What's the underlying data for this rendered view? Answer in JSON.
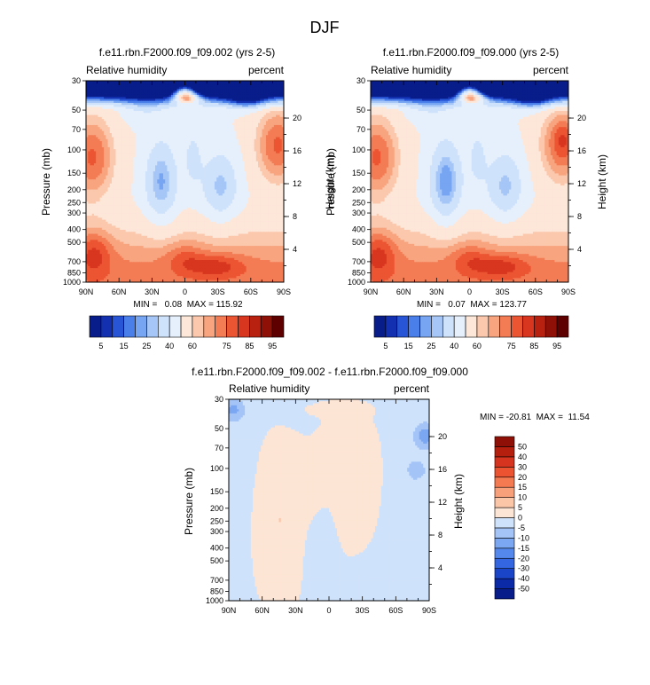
{
  "figure": {
    "title": "DJF"
  },
  "chart_data": [
    {
      "type": "heatmap",
      "title": "f.e11.rbn.F2000.f09_f09.002 (yrs 2-5)",
      "left_label": "Relative humidity",
      "right_label": "percent",
      "xlabel": "",
      "ylabel": "Pressure (mb)",
      "ylabel_right": "Height (km)",
      "x_ticks": [
        "90N",
        "60N",
        "30N",
        "0",
        "30S",
        "60S",
        "90S"
      ],
      "x_values": [
        90,
        60,
        30,
        0,
        -30,
        -60,
        -90
      ],
      "y_ticks": [
        30,
        50,
        70,
        100,
        150,
        200,
        250,
        300,
        400,
        500,
        700,
        850,
        1000
      ],
      "y_tick_labels": [
        "30",
        "50",
        "70",
        "100",
        "150",
        "200",
        "250",
        "300",
        "400",
        "500",
        "700",
        "850",
        "1000"
      ],
      "y_right_ticks": [
        4,
        8,
        12,
        16,
        20
      ],
      "y_right_tick_labels": [
        "4",
        "8",
        "12",
        "16",
        "20"
      ],
      "ylim": [
        1000,
        30
      ],
      "stats": "MIN =   0.08  MAX = 115.92",
      "min": 0.08,
      "max": 115.92,
      "colorbar": {
        "orientation": "horizontal",
        "levels": [
          5,
          10,
          15,
          20,
          25,
          30,
          40,
          50,
          60,
          65,
          70,
          75,
          80,
          85,
          90,
          95
        ],
        "labels": [
          "5",
          "15",
          "25",
          "40",
          "60",
          "75",
          "85",
          "95"
        ],
        "colors": [
          "#081d8a",
          "#1230b0",
          "#2755d6",
          "#4a7fea",
          "#77a5f2",
          "#a5c6f7",
          "#cfe2fb",
          "#e6f0fc",
          "#fde7d9",
          "#fbc8ad",
          "#f8a47e",
          "#f47c55",
          "#ec5532",
          "#d8361f",
          "#b8200f",
          "#8e1006",
          "#5e0000"
        ]
      }
    },
    {
      "type": "heatmap",
      "title": "f.e11.rbn.F2000.f09_f09.000 (yrs 2-5)",
      "left_label": "Relative humidity",
      "right_label": "percent",
      "xlabel": "",
      "ylabel": "Pressure (mb)",
      "ylabel_right": "Height (km)",
      "x_ticks": [
        "90N",
        "60N",
        "30N",
        "0",
        "30S",
        "60S",
        "90S"
      ],
      "x_values": [
        90,
        60,
        30,
        0,
        -30,
        -60,
        -90
      ],
      "y_ticks": [
        30,
        50,
        70,
        100,
        150,
        200,
        250,
        300,
        400,
        500,
        700,
        850,
        1000
      ],
      "y_tick_labels": [
        "30",
        "50",
        "70",
        "100",
        "150",
        "200",
        "250",
        "300",
        "400",
        "500",
        "700",
        "850",
        "1000"
      ],
      "y_right_ticks": [
        4,
        8,
        12,
        16,
        20
      ],
      "y_right_tick_labels": [
        "4",
        "8",
        "12",
        "16",
        "20"
      ],
      "ylim": [
        1000,
        30
      ],
      "stats": "MIN =   0.07  MAX = 123.77",
      "min": 0.07,
      "max": 123.77,
      "colorbar": {
        "orientation": "horizontal",
        "levels": [
          5,
          10,
          15,
          20,
          25,
          30,
          40,
          50,
          60,
          65,
          70,
          75,
          80,
          85,
          90,
          95
        ],
        "labels": [
          "5",
          "15",
          "25",
          "40",
          "60",
          "75",
          "85",
          "95"
        ],
        "colors": [
          "#081d8a",
          "#1230b0",
          "#2755d6",
          "#4a7fea",
          "#77a5f2",
          "#a5c6f7",
          "#cfe2fb",
          "#e6f0fc",
          "#fde7d9",
          "#fbc8ad",
          "#f8a47e",
          "#f47c55",
          "#ec5532",
          "#d8361f",
          "#b8200f",
          "#8e1006",
          "#5e0000"
        ]
      }
    },
    {
      "type": "heatmap",
      "title": "f.e11.rbn.F2000.f09_f09.002 - f.e11.rbn.F2000.f09_f09.000",
      "left_label": "Relative humidity",
      "right_label": "percent",
      "xlabel": "",
      "ylabel": "Pressure (mb)",
      "ylabel_right": "Height (km)",
      "x_ticks": [
        "90N",
        "60N",
        "30N",
        "0",
        "30S",
        "60S",
        "90S"
      ],
      "x_values": [
        90,
        60,
        30,
        0,
        -30,
        -60,
        -90
      ],
      "y_ticks": [
        30,
        50,
        70,
        100,
        150,
        200,
        250,
        300,
        400,
        500,
        700,
        850,
        1000
      ],
      "y_tick_labels": [
        "30",
        "50",
        "70",
        "100",
        "150",
        "200",
        "250",
        "300",
        "400",
        "500",
        "700",
        "850",
        "1000"
      ],
      "y_right_ticks": [
        4,
        8,
        12,
        16,
        20
      ],
      "y_right_tick_labels": [
        "4",
        "8",
        "12",
        "16",
        "20"
      ],
      "ylim": [
        1000,
        30
      ],
      "stats": "MIN = -20.81  MAX =  11.54",
      "min": -20.81,
      "max": 11.54,
      "colorbar": {
        "orientation": "vertical",
        "levels": [
          -50,
          -40,
          -30,
          -20,
          -15,
          -10,
          -5,
          0,
          5,
          10,
          15,
          20,
          30,
          40,
          50
        ],
        "labels": [
          "-50",
          "-40",
          "-30",
          "-20",
          "-15",
          "-10",
          "-5",
          "0",
          "5",
          "10",
          "15",
          "20",
          "30",
          "40",
          "50"
        ],
        "colors": [
          "#081d8a",
          "#0a2aa8",
          "#1a45c8",
          "#3366e0",
          "#5588ec",
          "#7aa6f2",
          "#a4c4f7",
          "#cfe2fb",
          "#fde5d5",
          "#fbc5a8",
          "#f8a07a",
          "#f47a52",
          "#ec5331",
          "#d6341e",
          "#b41f0e",
          "#8e1006"
        ]
      }
    }
  ]
}
